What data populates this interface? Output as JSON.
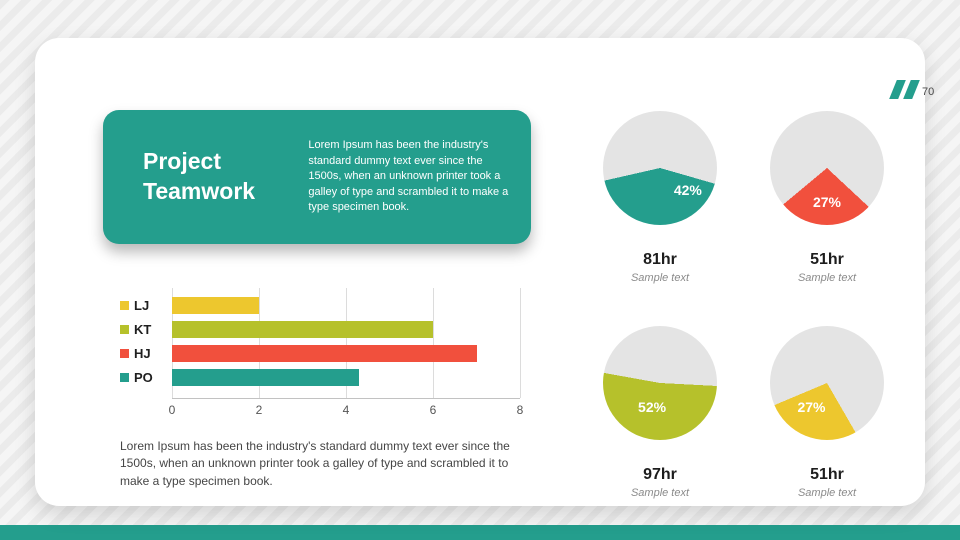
{
  "page": {
    "number": "70"
  },
  "title_card": {
    "title": "Project Teamwork",
    "description": "Lorem Ipsum has been the industry's standard dummy text ever since the 1500s, when an unknown printer took a galley of type and scrambled it to make a type specimen book."
  },
  "body_paragraph": "Lorem Ipsum has been the industry's standard dummy text ever since the 1500s, when an unknown printer took a galley of type and scrambled it to make a type specimen book.",
  "colors": {
    "teal": "#249e8d",
    "red": "#f1503d",
    "yellow": "#edc72e",
    "olive": "#b6c12b",
    "pie_track": "#e4e4e4"
  },
  "chart_data": [
    {
      "type": "bar",
      "orientation": "horizontal",
      "categories": [
        "LJ",
        "KT",
        "HJ",
        "PO"
      ],
      "values": [
        2,
        6,
        7,
        4.3
      ],
      "colors": [
        "#edc72e",
        "#b6c12b",
        "#f1503d",
        "#249e8d"
      ],
      "xlim": [
        0,
        8
      ],
      "xticks": [
        0,
        2,
        4,
        6,
        8
      ],
      "legend_position": "left",
      "grid": true,
      "title": "",
      "xlabel": "",
      "ylabel": ""
    },
    {
      "type": "pie",
      "label": "42%",
      "value": 42,
      "color": "#249e8d",
      "track_color": "#e4e4e4",
      "title": "81hr",
      "caption": "Sample text",
      "start_angle": 106,
      "label_angle": 128,
      "label_radius": 0.62
    },
    {
      "type": "pie",
      "label": "27%",
      "value": 27,
      "color": "#f1503d",
      "track_color": "#e4e4e4",
      "title": "51hr",
      "caption": "Sample text",
      "start_angle": 133,
      "label_angle": 180,
      "label_radius": 0.6
    },
    {
      "type": "pie",
      "label": "52%",
      "value": 52,
      "color": "#b6c12b",
      "track_color": "#e4e4e4",
      "title": "97hr",
      "caption": "Sample text",
      "start_angle": 93,
      "label_angle": 198,
      "label_radius": 0.45
    },
    {
      "type": "pie",
      "label": "27%",
      "value": 27,
      "color": "#edc72e",
      "track_color": "#e4e4e4",
      "title": "51hr",
      "caption": "Sample text",
      "start_angle": 150,
      "label_angle": 213,
      "label_radius": 0.5
    }
  ]
}
